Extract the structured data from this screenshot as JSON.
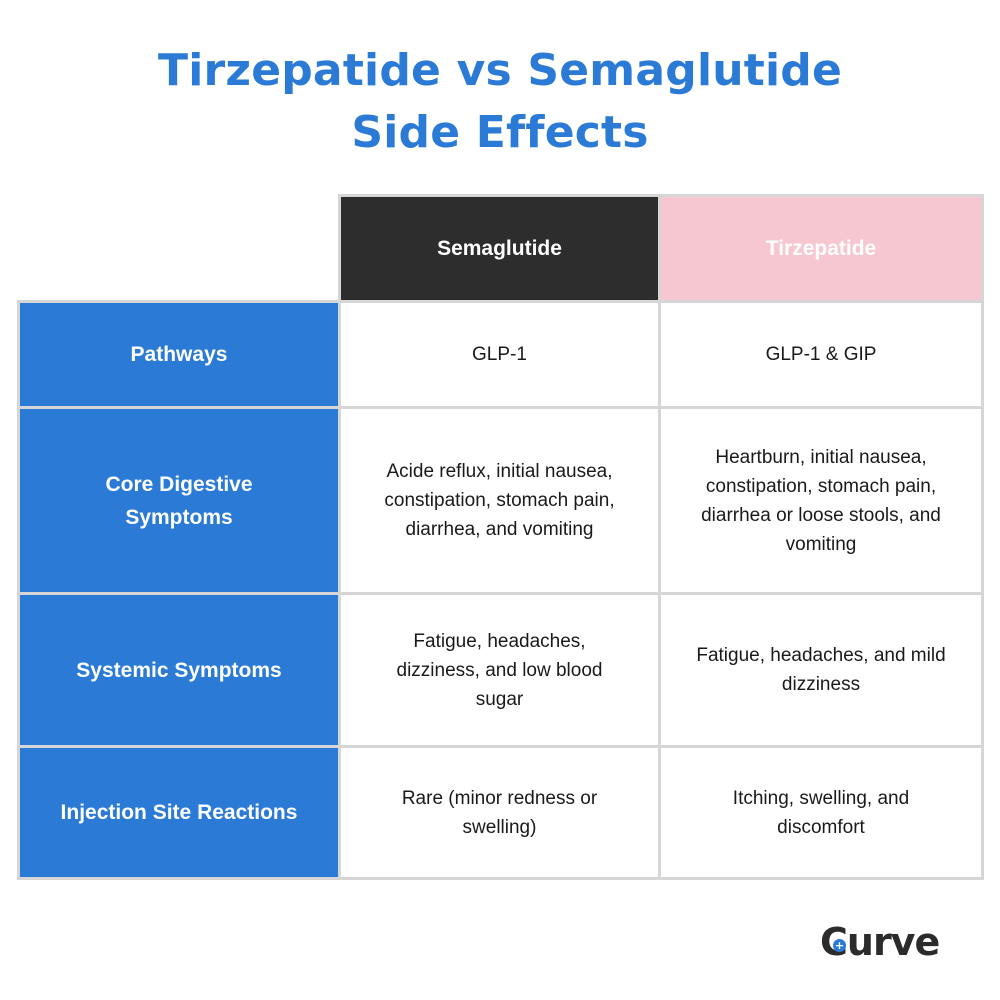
{
  "title": {
    "line1": "Tirzepatide vs Semaglutide",
    "line2": "Side Effects"
  },
  "columns": [
    "Semaglutide",
    "Tirzepatide"
  ],
  "rows": [
    {
      "label": "Pathways",
      "semaglutide": "GLP-1",
      "tirzepatide": "GLP-1 & GIP"
    },
    {
      "label": "Core Digestive Symptoms",
      "semaglutide": "Acide reflux, initial nausea, constipation, stomach pain, diarrhea, and vomiting",
      "tirzepatide": "Heartburn, initial nausea, constipation, stomach pain, diarrhea or loose stools, and vomiting"
    },
    {
      "label": "Systemic Symptoms",
      "semaglutide": "Fatigue, headaches, dizziness, and low blood sugar",
      "tirzepatide": "Fatigue, headaches, and mild dizziness"
    },
    {
      "label": "Injection Site Reactions",
      "semaglutide": "Rare (minor redness or swelling)",
      "tirzepatide": "Itching, swelling, and discomfort"
    }
  ],
  "brand": {
    "logo_text": "Curve",
    "logo_first": "C",
    "logo_rest": "urve"
  },
  "colors": {
    "title": "#2a7ad6",
    "row_header": "#2a7ad6",
    "semaglutide_header": "#2e2d2e",
    "tirzepatide_header": "#f7c7d1",
    "grid": "#d6d6d6"
  }
}
